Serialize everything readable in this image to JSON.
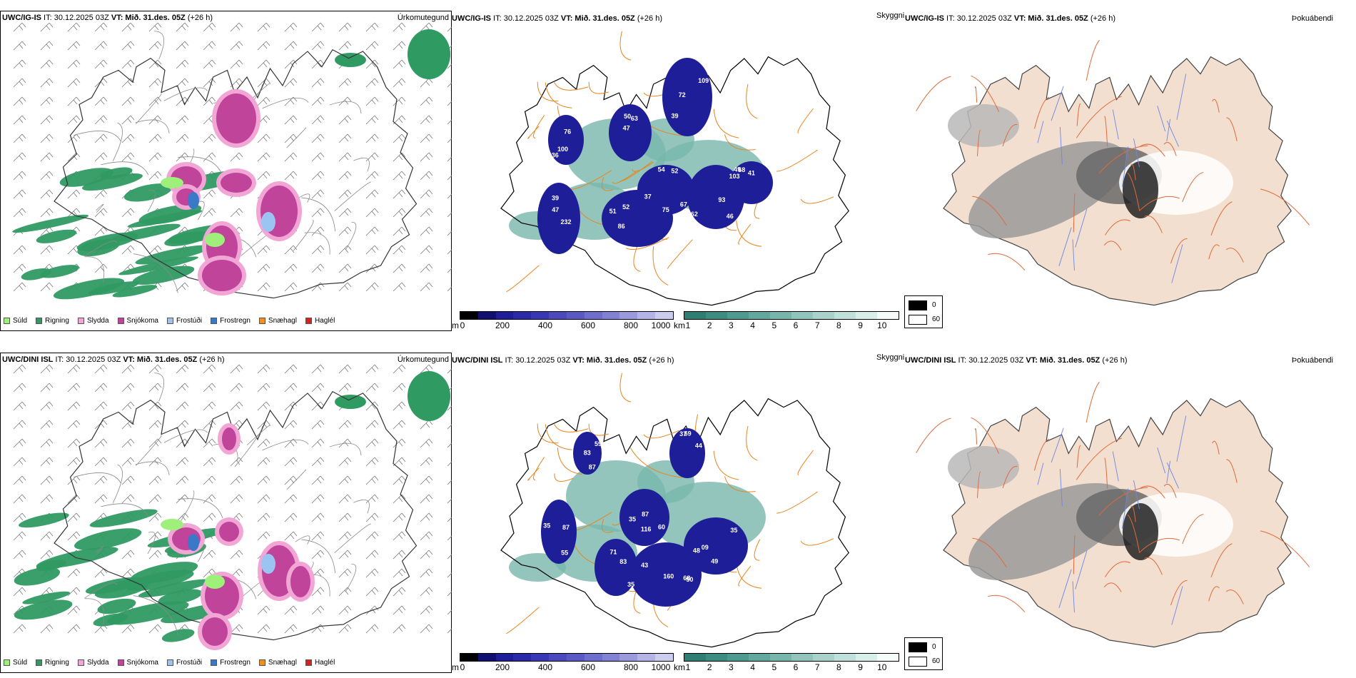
{
  "colors": {
    "land": "#ffffff",
    "fog_land": "#f2dfd0",
    "coast": "#333333",
    "road": "#e06a3a",
    "road_orange": "#e8841e",
    "river": "#6f86e8",
    "ceiling_dark": "#16168c",
    "visibility_green": "#3a9a8c"
  },
  "rows": [
    {
      "id": "ig",
      "model": "UWC/IG-IS",
      "it_text": " IT: 30.12.2025 03Z ",
      "vt_bold": "VT: Mið. 31.des. 05Z",
      "lead": " (+26 h)",
      "ceiling_labels": [
        "67",
        "51",
        "103",
        "72",
        "63",
        "36",
        "39",
        "41",
        "37",
        "52",
        "62",
        "39",
        "50",
        "76",
        "232",
        "49",
        "54",
        "75",
        "93",
        "109",
        "47",
        "100",
        "47",
        "68",
        "52",
        "86",
        "46"
      ]
    },
    {
      "id": "dini",
      "model": "UWC/DINI ISL",
      "it_text": " IT: 30.12.2025 03Z ",
      "vt_bold": "VT: Mið. 31.des. 05Z",
      "lead": " (+26 h)",
      "ceiling_labels": [
        "60",
        "68",
        "35",
        "44",
        "71",
        "55",
        "59",
        "35",
        "160",
        "49",
        "69",
        "83",
        "87",
        "87",
        "116",
        "43",
        "48",
        "37",
        "35",
        "35",
        "83",
        "87",
        "50",
        "09"
      ]
    }
  ],
  "panel_titles": {
    "precip": "Úrkomutegund",
    "visibility": "Skyggni",
    "fog": "Þokuábendi"
  },
  "precip_legend": [
    {
      "label": "Súld",
      "color": "#9ef07a"
    },
    {
      "label": "Rigning",
      "color": "#2f9a62"
    },
    {
      "label": "Slydda",
      "color": "#f2a6d6"
    },
    {
      "label": "Snjókoma",
      "color": "#c0449a"
    },
    {
      "label": "Frostúði",
      "color": "#9cc4f2"
    },
    {
      "label": "Frostregn",
      "color": "#3a78c8"
    },
    {
      "label": "Snæhagl",
      "color": "#f0901e"
    },
    {
      "label": "Haglél",
      "color": "#e21b1b"
    }
  ],
  "ceiling_scale": {
    "unit": "m",
    "ticks": [
      "0",
      "200",
      "400",
      "600",
      "800",
      "1000"
    ],
    "colors": [
      "#000000",
      "#101070",
      "#1e1e98",
      "#2a2aa8",
      "#3838b4",
      "#4a4abc",
      "#5a5ac4",
      "#6e6ecc",
      "#8282d4",
      "#9a9adc",
      "#b4b4e6",
      "#cccdee"
    ]
  },
  "visibility_scale": {
    "unit": "km",
    "ticks": [
      "1",
      "2",
      "3",
      "4",
      "5",
      "6",
      "7",
      "8",
      "9",
      "10"
    ],
    "colors": [
      "#2e7e74",
      "#3c8c82",
      "#4e9a90",
      "#62a89e",
      "#78b6ac",
      "#90c4bc",
      "#a8d2ca",
      "#c0e0da",
      "#d8eee8",
      "#f4fbf9"
    ]
  },
  "fog_legend": {
    "dark_label": "0",
    "light_label": "60"
  }
}
